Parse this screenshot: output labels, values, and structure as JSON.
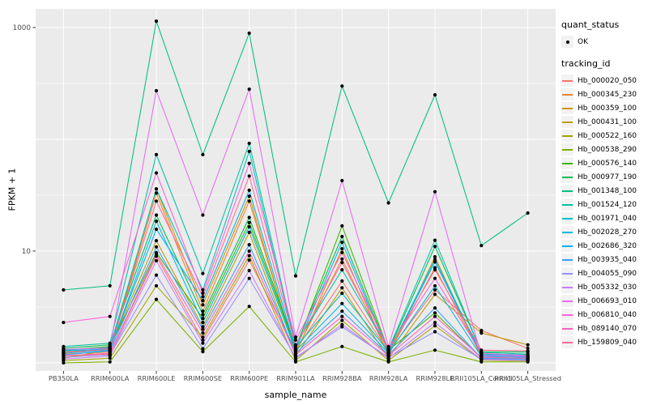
{
  "styles": {
    "panel_bg": "#EBEBEB",
    "grid_color": "#FFFFFF",
    "tick_text_color": "#4D4D4D",
    "tick_mark_color": "#333333",
    "point_color": "#000000",
    "legend_key_bg": "#F2F2F2"
  },
  "chart_data": {
    "type": "line",
    "title": "",
    "xlabel": "sample_name",
    "ylabel": "FPKM + 1",
    "y_scale": "log10",
    "ylim_log": [
      1,
      1470
    ],
    "grid": "on",
    "legend_position": "right",
    "y_labeled_breaks": [
      {
        "value": 1000,
        "label": "1000"
      },
      {
        "value": 10,
        "label": "10"
      }
    ],
    "y_major_gridlines": [
      1,
      10,
      100,
      1000
    ],
    "y_minor_gridlines": [
      3.162,
      31.62,
      316.2
    ],
    "categories": [
      "PB350LA",
      "RRIM600LA",
      "RRIM600LE",
      "RRIM600SE",
      "RRIM600PE",
      "RRIM901LA",
      "RRIM928BA",
      "RRIM928LA",
      "RRIM928LE",
      "RRII105LA_Control",
      "RRII105LA_Stressed"
    ],
    "legend": {
      "quant_status_title": "quant_status",
      "quant_status_label": "OK",
      "tracking_title": "tracking_id"
    },
    "series": [
      {
        "name": "Hb_000020_050",
        "color": "#F8766D",
        "values": [
          1.15,
          1.2,
          9.0,
          1.6,
          8.3,
          1.3,
          5.4,
          1.25,
          4.5,
          1.95,
          1.35
        ]
      },
      {
        "name": "Hb_000345_230",
        "color": "#EA8331",
        "values": [
          1.2,
          1.25,
          33,
          2.9,
          28,
          1.25,
          8.5,
          1.2,
          7.1,
          1.15,
          1.12
        ]
      },
      {
        "name": "Hb_000359_100",
        "color": "#D89000",
        "values": [
          1.1,
          1.3,
          36,
          3.3,
          31,
          1.2,
          10.5,
          1.15,
          8.9,
          1.12,
          1.1
        ]
      },
      {
        "name": "Hb_000431_100",
        "color": "#C09B00",
        "values": [
          1.25,
          1.35,
          12.4,
          2.1,
          14.7,
          1.15,
          4.7,
          1.1,
          4.1,
          1.85,
          1.45
        ]
      },
      {
        "name": "Hb_000522_160",
        "color": "#A3A500",
        "values": [
          1.05,
          1.1,
          4.9,
          1.7,
          9.1,
          1.05,
          2.4,
          1.05,
          2.15,
          1.06,
          1.04
        ]
      },
      {
        "name": "Hb_000538_290",
        "color": "#7CAE00",
        "values": [
          1.0,
          1.02,
          3.7,
          1.26,
          3.2,
          1.02,
          1.4,
          1.02,
          1.3,
          1.02,
          1.02
        ]
      },
      {
        "name": "Hb_000576_140",
        "color": "#39B600",
        "values": [
          1.3,
          1.4,
          9.7,
          2.5,
          18,
          1.35,
          16.8,
          1.3,
          2.8,
          1.1,
          1.08
        ]
      },
      {
        "name": "Hb_000977_190",
        "color": "#00BB4E",
        "values": [
          1.35,
          1.45,
          21,
          2.7,
          20,
          1.4,
          13.5,
          1.28,
          11.0,
          1.26,
          1.25
        ]
      },
      {
        "name": "Hb_001348_100",
        "color": "#00BF7D",
        "values": [
          4.5,
          4.9,
          1140,
          73,
          890,
          6.0,
          300,
          27,
          250,
          11.2,
          21.9
        ]
      },
      {
        "name": "Hb_001524_120",
        "color": "#00C1A3",
        "values": [
          1.4,
          1.5,
          73,
          6.3,
          92,
          1.45,
          6.8,
          1.32,
          12.5,
          1.24,
          1.2
        ]
      },
      {
        "name": "Hb_001971_040",
        "color": "#00BFC4",
        "values": [
          1.3,
          1.38,
          36,
          4.5,
          78,
          1.38,
          4.2,
          1.26,
          8.4,
          1.2,
          1.18
        ]
      },
      {
        "name": "Hb_002028_270",
        "color": "#00BAE0",
        "values": [
          1.22,
          1.3,
          18.5,
          2.3,
          16.5,
          1.28,
          3.4,
          1.22,
          4.9,
          1.14,
          1.12
        ]
      },
      {
        "name": "Hb_002686_320",
        "color": "#00B0F6",
        "values": [
          1.28,
          1.33,
          15.7,
          3.6,
          35,
          1.32,
          12.0,
          1.24,
          8.0,
          1.18,
          1.15
        ]
      },
      {
        "name": "Hb_003935_040",
        "color": "#35A2FF",
        "values": [
          1.18,
          1.28,
          10.9,
          2.0,
          11.4,
          1.22,
          2.9,
          1.18,
          3.1,
          1.1,
          1.08
        ]
      },
      {
        "name": "Hb_004055_090",
        "color": "#9590FF",
        "values": [
          1.12,
          1.18,
          6.1,
          1.34,
          5.7,
          1.12,
          2.1,
          1.12,
          1.9,
          1.08,
          1.06
        ]
      },
      {
        "name": "Hb_005332_030",
        "color": "#C77CFF",
        "values": [
          1.08,
          1.15,
          8.2,
          1.5,
          6.7,
          1.1,
          2.2,
          1.1,
          2.3,
          1.07,
          1.05
        ]
      },
      {
        "name": "Hb_006693_010",
        "color": "#E76BF3",
        "values": [
          1.32,
          1.36,
          272,
          21,
          281,
          1.7,
          42.7,
          1.4,
          34,
          1.16,
          1.14
        ]
      },
      {
        "name": "Hb_006810_040",
        "color": "#FA62DB",
        "values": [
          2.3,
          2.6,
          50,
          4.2,
          61,
          1.6,
          9.7,
          1.35,
          5.7,
          1.22,
          1.16
        ]
      },
      {
        "name": "Hb_089140_070",
        "color": "#FF62BC",
        "values": [
          1.16,
          1.22,
          9.4,
          1.85,
          10.0,
          1.18,
          2.6,
          1.16,
          2.6,
          1.12,
          1.1
        ]
      },
      {
        "name": "Hb_159809_040",
        "color": "#FF6A98",
        "values": [
          1.24,
          1.32,
          28,
          3.9,
          47,
          1.42,
          7.9,
          1.3,
          6.8,
          1.3,
          1.28
        ]
      }
    ]
  }
}
